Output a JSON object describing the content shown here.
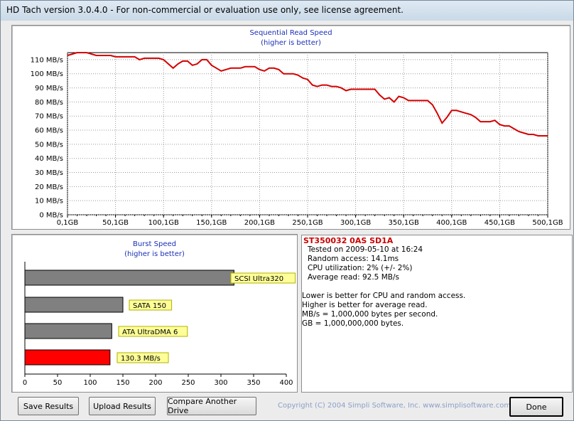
{
  "window": {
    "title": "HD Tach version 3.0.4.0  - For non-commercial or evaluation use only, see license agreement."
  },
  "seq_chart": {
    "title": "Sequential Read Speed",
    "subtitle": "(higher is better)",
    "y_ticks": [
      "110 MB/s",
      "100 MB/s",
      "90 MB/s",
      "80 MB/s",
      "70 MB/s",
      "60 MB/s",
      "50 MB/s",
      "40 MB/s",
      "30 MB/s",
      "20 MB/s",
      "10 MB/s",
      "0 MB/s"
    ],
    "x_ticks": [
      "0,1GB",
      "50,1GB",
      "100,1GB",
      "150,1GB",
      "200,1GB",
      "250,1GB",
      "300,1GB",
      "350,1GB",
      "400,1GB",
      "450,1GB",
      "500,1GB"
    ]
  },
  "burst_chart": {
    "title": "Burst Speed",
    "subtitle": "(higher is better)",
    "x_ticks": [
      "0",
      "50",
      "100",
      "150",
      "200",
      "250",
      "300",
      "350",
      "400"
    ]
  },
  "chart_data": [
    {
      "type": "line",
      "title": "Sequential Read Speed",
      "subtitle": "(higher is better)",
      "xlabel": "",
      "ylabel": "",
      "xlim": [
        0.1,
        500.1
      ],
      "ylim": [
        0,
        115
      ],
      "grid": true,
      "series": [
        {
          "color": "#d40000",
          "x": [
            0,
            5,
            10,
            15,
            20,
            25,
            30,
            35,
            40,
            45,
            50,
            55,
            60,
            65,
            70,
            75,
            80,
            85,
            90,
            95,
            100,
            105,
            110,
            115,
            120,
            125,
            130,
            135,
            140,
            145,
            150,
            155,
            160,
            165,
            170,
            175,
            180,
            185,
            190,
            195,
            200,
            205,
            210,
            215,
            220,
            225,
            230,
            235,
            240,
            245,
            250,
            255,
            260,
            265,
            270,
            275,
            280,
            285,
            290,
            295,
            300,
            305,
            310,
            315,
            320,
            325,
            330,
            335,
            340,
            345,
            350,
            355,
            360,
            365,
            370,
            375,
            380,
            385,
            390,
            395,
            400,
            405,
            410,
            415,
            420,
            425,
            430,
            435,
            440,
            445,
            450,
            455,
            460,
            465,
            470,
            475,
            480,
            485,
            490,
            495,
            500
          ],
          "y": [
            113,
            114,
            115,
            115,
            115,
            114,
            113,
            113,
            113,
            113,
            112,
            112,
            112,
            112,
            112,
            110,
            111,
            111,
            111,
            111,
            110,
            107,
            104,
            107,
            109,
            109,
            106,
            107,
            110,
            110,
            106,
            104,
            102,
            103,
            104,
            104,
            104,
            105,
            105,
            105,
            103,
            102,
            104,
            104,
            103,
            100,
            100,
            100,
            99,
            97,
            96,
            92,
            91,
            92,
            92,
            91,
            91,
            90,
            88,
            89,
            89,
            89,
            89,
            89,
            89,
            85,
            82,
            83,
            80,
            84,
            83,
            81,
            81,
            81,
            81,
            81,
            78,
            72,
            65,
            69,
            74,
            74,
            73,
            72,
            71,
            69,
            66,
            66,
            66,
            67,
            64,
            63,
            63,
            61,
            59,
            58,
            57,
            57,
            56,
            56,
            56
          ]
        }
      ]
    },
    {
      "type": "bar",
      "orientation": "horizontal",
      "title": "Burst Speed",
      "subtitle": "(higher is better)",
      "xlim": [
        0,
        400
      ],
      "categories": [
        "SCSI Ultra320",
        "SATA 150",
        "ATA UltraDMA 6",
        "130.3 MB/s"
      ],
      "values": [
        320,
        150,
        133,
        130.3
      ],
      "colors": [
        "#808080",
        "#808080",
        "#808080",
        "#ff0000"
      ]
    }
  ],
  "info": {
    "drive_name": "ST350032 0AS SD1A",
    "tested_on": "Tested on 2009-05-10 at 16:24",
    "random_access": "Random access: 14.1ms",
    "cpu_util": "CPU utilization: 2% (+/- 2%)",
    "avg_read": "Average read: 92.5 MB/s",
    "note1": "Lower is better for CPU and random access.",
    "note2": "Higher is better for average read.",
    "note3": "MB/s = 1,000,000 bytes per second.",
    "note4": "GB = 1,000,000,000 bytes."
  },
  "buttons": {
    "save": "Save Results",
    "upload": "Upload Results",
    "compare": "Compare Another Drive",
    "done": "Done"
  },
  "footer": {
    "copyright": "Copyright (C) 2004 Simpli Software, Inc. www.simplisoftware.com"
  }
}
